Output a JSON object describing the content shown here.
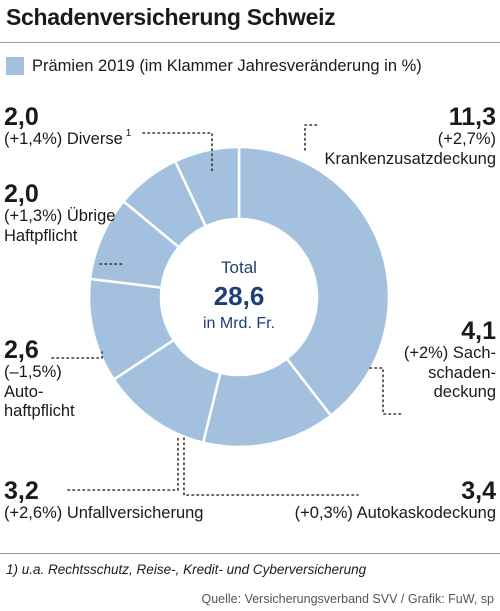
{
  "title": "Schadenversicherung Schweiz",
  "legend": {
    "label": "Prämien 2019 (im Klammer Jahresveränderung in %)",
    "color": "#a3c1de"
  },
  "center": {
    "line1": "Total",
    "value": "28,6",
    "line3": "in Mrd. Fr."
  },
  "chart_data": {
    "type": "pie",
    "title": "Schadenversicherung Schweiz",
    "total": 28.6,
    "unit": "Mrd. Fr.",
    "slices": [
      {
        "name": "Krankenzusatzdeckung",
        "value": 11.3,
        "change_pct": 2.7
      },
      {
        "name": "Sachschadendeckung",
        "value": 4.1,
        "change_pct": 2.0
      },
      {
        "name": "Autokaskodeckung",
        "value": 3.4,
        "change_pct": 0.3
      },
      {
        "name": "Unfallversicherung",
        "value": 3.2,
        "change_pct": 2.6
      },
      {
        "name": "Autohaftpflicht",
        "value": 2.6,
        "change_pct": -1.5
      },
      {
        "name": "Übrige Haftpflicht",
        "value": 2.0,
        "change_pct": 1.3
      },
      {
        "name": "Diverse",
        "value": 2.0,
        "change_pct": 1.4
      }
    ],
    "colors": {
      "slice": "#a3c1de",
      "separator": "#ffffff",
      "leader": "#333333",
      "center_value": "#1e3f73"
    }
  },
  "labels": {
    "diverse": {
      "value": "2,0",
      "change": "(+1,4%)",
      "name": "Diverse",
      "note": "1"
    },
    "uebrige": {
      "value": "2,0",
      "change": "(+1,3%)",
      "name1": "Übrige",
      "name2": "Haftpflicht"
    },
    "autohaft": {
      "value": "2,6",
      "change": "(–1,5%)",
      "name1": "Auto-",
      "name2": "haftpflicht"
    },
    "unfall": {
      "value": "3,2",
      "change": "(+2,6%)",
      "name": "Unfallversicherung"
    },
    "kranken": {
      "value": "11,3",
      "change": "(+2,7%)",
      "name": "Krankenzusatzdeckung"
    },
    "sach": {
      "value": "4,1",
      "line1": "(+2%) Sach-",
      "line2": "schaden-",
      "line3": "deckung"
    },
    "autokasko": {
      "value": "3,4",
      "change": "(+0,3%)",
      "name": "Autokaskodeckung"
    }
  },
  "footnote": "1) u.a. Rechtsschutz, Reise-, Kredit- und Cyberversicherung",
  "source": "Quelle: Versicherungsverband SVV / Grafik: FuW, sp"
}
